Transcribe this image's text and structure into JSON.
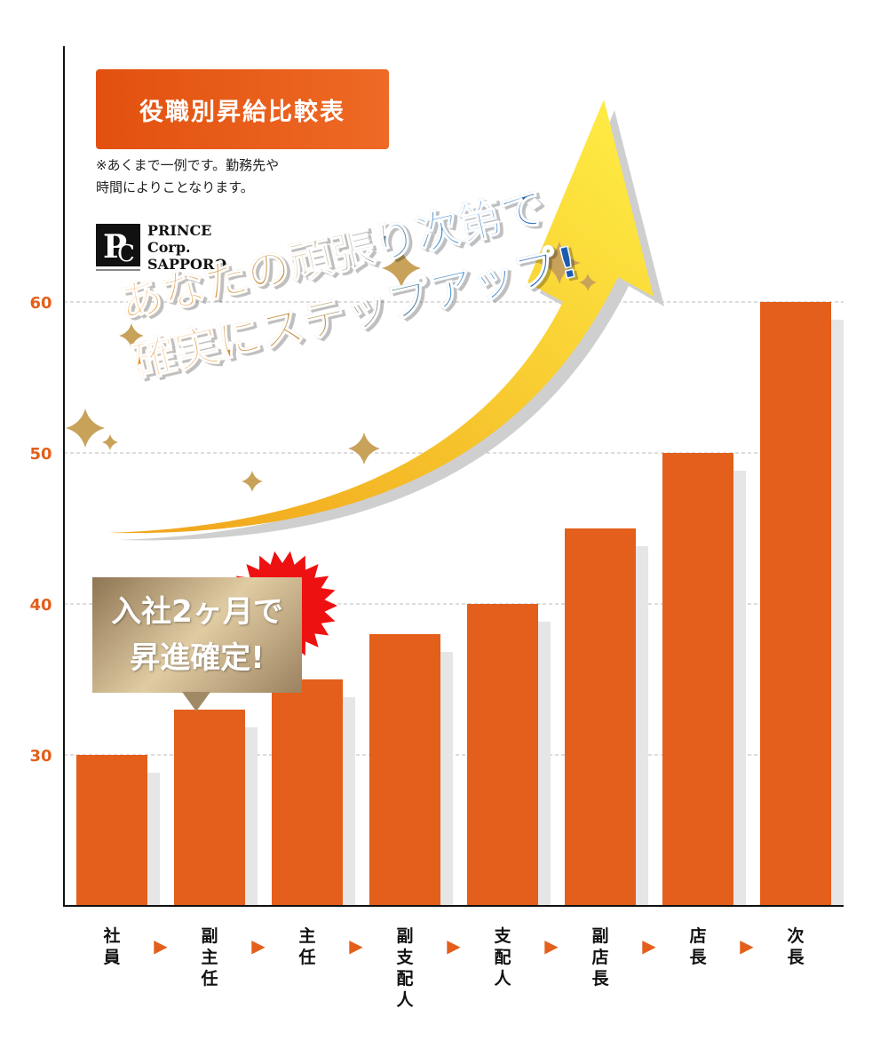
{
  "header": {
    "title": "役職別昇給比較表",
    "note": "※あくまで一例です。勤務先や\n時間によりことなります。"
  },
  "logo": {
    "lines": [
      "PRINCE",
      "Corp.",
      "SAPPORO"
    ]
  },
  "slogan": {
    "line1": "あなたの頑張り次第で",
    "line2": "確実にステップアップ!"
  },
  "callout": {
    "line1": "入社2ヶ月で",
    "line2": "昇進確定!"
  },
  "colors": {
    "bar": "#e35f1b",
    "bar_shadow": "#e6e6e6",
    "tick_label": "#e35f1b",
    "arrow_light": "#ffea3d",
    "arrow_dark": "#f0a21a",
    "sparkle": "#c9a25a",
    "burst": "#ee1111"
  },
  "chart_data": {
    "type": "bar",
    "categories": [
      "社員",
      "副主任",
      "主任",
      "副支配人",
      "支配人",
      "副店長",
      "店長",
      "次長"
    ],
    "values": [
      30,
      33,
      35,
      38,
      40,
      45,
      50,
      60
    ],
    "ylim": [
      20,
      60
    ],
    "yticks": [
      30,
      40,
      50,
      60
    ],
    "grid": "horizontal dashed",
    "category_separator": "▶"
  }
}
